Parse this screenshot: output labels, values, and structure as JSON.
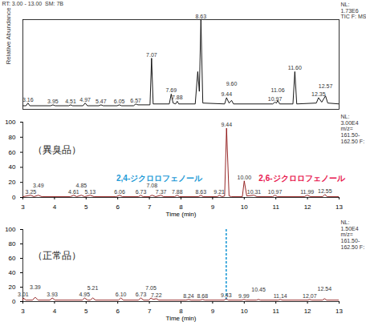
{
  "chart_data": [
    {
      "type": "line",
      "header": "RT: 3.00 - 13.00  SM: 7B",
      "notes": [
        "NL:",
        "1.73E6",
        "TIC F: MS"
      ],
      "y_label": "Relative Abundance",
      "color": "#000000",
      "tick_labels": false,
      "xlim": [
        3,
        13
      ],
      "ylim": [
        0,
        100
      ],
      "x": [
        3.0,
        3.1,
        3.16,
        3.22,
        3.88,
        3.95,
        4.02,
        4.45,
        4.51,
        4.57,
        4.9,
        4.97,
        5.04,
        5.4,
        5.47,
        5.54,
        5.98,
        6.05,
        6.12,
        6.5,
        6.57,
        6.64,
        7.02,
        7.07,
        7.12,
        7.63,
        7.69,
        7.75,
        7.83,
        7.88,
        7.93,
        8.45,
        8.53,
        8.58,
        8.63,
        8.69,
        9.38,
        9.44,
        9.52,
        9.6,
        9.66,
        10.9,
        10.97,
        11.02,
        11.06,
        11.12,
        11.54,
        11.6,
        11.66,
        12.28,
        12.35,
        12.45,
        12.57,
        12.64,
        13.0
      ],
      "values": [
        4,
        4,
        7,
        4,
        4,
        5,
        4,
        4,
        5,
        4,
        4,
        7,
        4,
        4,
        5,
        4,
        4,
        5,
        4,
        4,
        6,
        5,
        5,
        57,
        6,
        6,
        17,
        7,
        6,
        9,
        6,
        6,
        42,
        20,
        100,
        7,
        6,
        13,
        7,
        10,
        6,
        6,
        8,
        7,
        10,
        6,
        6,
        42,
        6,
        7,
        13,
        8,
        15,
        7,
        6
      ],
      "peak_labels": [
        {
          "x": 3.16,
          "y": 7,
          "label": "3.16"
        },
        {
          "x": 3.95,
          "y": 5,
          "label": "3.95"
        },
        {
          "x": 4.51,
          "y": 5,
          "label": "4.51"
        },
        {
          "x": 4.97,
          "y": 7,
          "label": "4.97"
        },
        {
          "x": 5.47,
          "y": 5,
          "label": "5.47"
        },
        {
          "x": 6.05,
          "y": 5,
          "label": "6.05"
        },
        {
          "x": 6.57,
          "y": 6,
          "label": "6.57"
        },
        {
          "x": 7.07,
          "y": 57,
          "label": "7.07"
        },
        {
          "x": 7.69,
          "y": 17,
          "label": "7.69"
        },
        {
          "x": 7.88,
          "y": 9,
          "label": "7.88"
        },
        {
          "x": 8.63,
          "y": 100,
          "label": "8.63"
        },
        {
          "x": 9.44,
          "y": 13,
          "label": "9.44"
        },
        {
          "x": 9.6,
          "y": 10,
          "label": "9.60"
        },
        {
          "x": 10.97,
          "y": 8,
          "label": "10.97"
        },
        {
          "x": 11.06,
          "y": 10,
          "label": "11.06"
        },
        {
          "x": 11.6,
          "y": 42,
          "label": "11.60"
        },
        {
          "x": 12.35,
          "y": 13,
          "label": "12.35"
        },
        {
          "x": 12.57,
          "y": 15,
          "label": "12.57"
        }
      ]
    },
    {
      "type": "line",
      "title": "（異臭品）",
      "notes": [
        "NL:",
        "3.00E4",
        "m/z=",
        "161.50-",
        "162.50 F:"
      ],
      "x_label": "Time (min)",
      "color": "#8b1010",
      "xlim": [
        3,
        13
      ],
      "xticks": [
        3,
        4,
        5,
        6,
        7,
        8,
        9,
        10,
        11,
        12,
        13
      ],
      "ylim": [
        0,
        100
      ],
      "yticks": [
        0,
        20,
        40,
        60,
        80,
        100
      ],
      "x": [
        3.0,
        3.25,
        3.35,
        3.49,
        3.6,
        4.5,
        4.61,
        4.7,
        4.85,
        4.95,
        5.13,
        5.25,
        5.95,
        6.06,
        6.15,
        6.65,
        6.73,
        6.8,
        7.0,
        7.08,
        7.2,
        7.37,
        7.45,
        7.8,
        7.88,
        7.95,
        8.55,
        8.63,
        8.7,
        9.15,
        9.21,
        9.3,
        9.38,
        9.44,
        9.52,
        9.6,
        9.94,
        10.0,
        10.08,
        10.31,
        10.4,
        10.9,
        10.97,
        11.05,
        11.9,
        11.99,
        12.1,
        12.48,
        12.55,
        12.62,
        13.0
      ],
      "values": [
        1,
        3,
        1,
        3,
        1,
        1,
        3,
        1,
        3,
        1,
        3,
        1,
        1,
        3,
        1,
        1,
        3,
        1,
        1,
        3,
        1,
        3,
        1,
        1,
        3,
        1,
        1,
        3,
        1,
        1,
        3,
        1,
        2,
        92,
        2,
        1,
        1,
        22,
        2,
        3,
        1,
        1,
        3,
        1,
        1,
        3,
        1,
        1,
        4,
        1,
        1
      ],
      "peak_labels": [
        {
          "x": 3.25,
          "y": 3,
          "label": "3.25"
        },
        {
          "x": 3.49,
          "y": 3,
          "label": "3.49"
        },
        {
          "x": 4.61,
          "y": 3,
          "label": "4.61"
        },
        {
          "x": 4.85,
          "y": 3,
          "label": "4.85"
        },
        {
          "x": 5.13,
          "y": 3,
          "label": "5.13"
        },
        {
          "x": 6.06,
          "y": 3,
          "label": "6.06"
        },
        {
          "x": 6.73,
          "y": 3,
          "label": "6.73"
        },
        {
          "x": 7.08,
          "y": 3,
          "label": "7.08"
        },
        {
          "x": 7.37,
          "y": 3,
          "label": "7.37"
        },
        {
          "x": 7.88,
          "y": 3,
          "label": "7.88"
        },
        {
          "x": 8.63,
          "y": 3,
          "label": "8.63"
        },
        {
          "x": 9.21,
          "y": 3,
          "label": "9.21"
        },
        {
          "x": 9.44,
          "y": 92,
          "label": "9.44"
        },
        {
          "x": 10.0,
          "y": 22,
          "label": "10.00"
        },
        {
          "x": 10.31,
          "y": 3,
          "label": "10.31"
        },
        {
          "x": 10.97,
          "y": 3,
          "label": "10.97"
        },
        {
          "x": 11.99,
          "y": 3,
          "label": "11.99"
        },
        {
          "x": 12.55,
          "y": 4,
          "label": "12.55"
        }
      ],
      "annotations": [
        {
          "text": "2,4-ジクロロフェノール",
          "x": 9.44,
          "color": "#1e9bd7"
        },
        {
          "text": "2,6-ジクロロフェノール",
          "x": 10.0,
          "color": "#e8174f"
        }
      ]
    },
    {
      "type": "line",
      "title": "（正常品）",
      "notes": [
        "NL:",
        "1.50E4",
        "m/z=",
        "161.50-",
        "162.50 F:"
      ],
      "x_label": "Time (min)",
      "color": "#8b1010",
      "xlim": [
        3,
        13
      ],
      "xticks": [
        3,
        4,
        5,
        6,
        7,
        8,
        9,
        10,
        11,
        12,
        13
      ],
      "ylim": [
        0,
        100
      ],
      "yticks": [
        0,
        20,
        40,
        60,
        80,
        100
      ],
      "x": [
        3.0,
        3.01,
        3.1,
        3.3,
        3.39,
        3.48,
        3.85,
        3.93,
        4.02,
        4.88,
        4.95,
        5.05,
        5.13,
        5.21,
        5.3,
        6.02,
        6.1,
        6.18,
        6.65,
        6.73,
        6.82,
        6.98,
        7.05,
        7.12,
        7.22,
        7.3,
        8.16,
        8.24,
        8.32,
        8.6,
        8.68,
        8.76,
        9.36,
        9.43,
        9.5,
        9.92,
        9.99,
        10.06,
        10.38,
        10.45,
        10.52,
        11.07,
        11.14,
        11.21,
        12.0,
        12.07,
        12.14,
        12.47,
        12.54,
        12.61,
        13.0
      ],
      "values": [
        2,
        5,
        2,
        2,
        6,
        2,
        2,
        5,
        2,
        2,
        5,
        2,
        2,
        5,
        2,
        2,
        5,
        2,
        2,
        5,
        2,
        2,
        5,
        3,
        4,
        2,
        2,
        3,
        2,
        2,
        3,
        2,
        2,
        4,
        2,
        2,
        3,
        2,
        2,
        3,
        2,
        2,
        3,
        2,
        2,
        3,
        2,
        2,
        4,
        2,
        2
      ],
      "peak_labels": [
        {
          "x": 3.01,
          "y": 5,
          "label": "3.01"
        },
        {
          "x": 3.39,
          "y": 6,
          "label": "3.39"
        },
        {
          "x": 3.93,
          "y": 5,
          "label": "3.93"
        },
        {
          "x": 4.95,
          "y": 5,
          "label": "4.95"
        },
        {
          "x": 5.21,
          "y": 5,
          "label": "5.21"
        },
        {
          "x": 6.1,
          "y": 5,
          "label": "6.10"
        },
        {
          "x": 6.73,
          "y": 5,
          "label": "6.73"
        },
        {
          "x": 7.05,
          "y": 5,
          "label": "7.05"
        },
        {
          "x": 7.22,
          "y": 4,
          "label": "7.22"
        },
        {
          "x": 8.24,
          "y": 3,
          "label": "8.24"
        },
        {
          "x": 8.68,
          "y": 3,
          "label": "8.68"
        },
        {
          "x": 9.43,
          "y": 4,
          "label": "9.43"
        },
        {
          "x": 9.99,
          "y": 3,
          "label": "9.99"
        },
        {
          "x": 10.45,
          "y": 3,
          "label": "10.45"
        },
        {
          "x": 11.14,
          "y": 3,
          "label": "11.14"
        },
        {
          "x": 12.07,
          "y": 3,
          "label": "12.07"
        },
        {
          "x": 12.54,
          "y": 4,
          "label": "12.54"
        }
      ],
      "reference_line": {
        "x": 9.43,
        "color": "#1e9bd7"
      }
    }
  ]
}
